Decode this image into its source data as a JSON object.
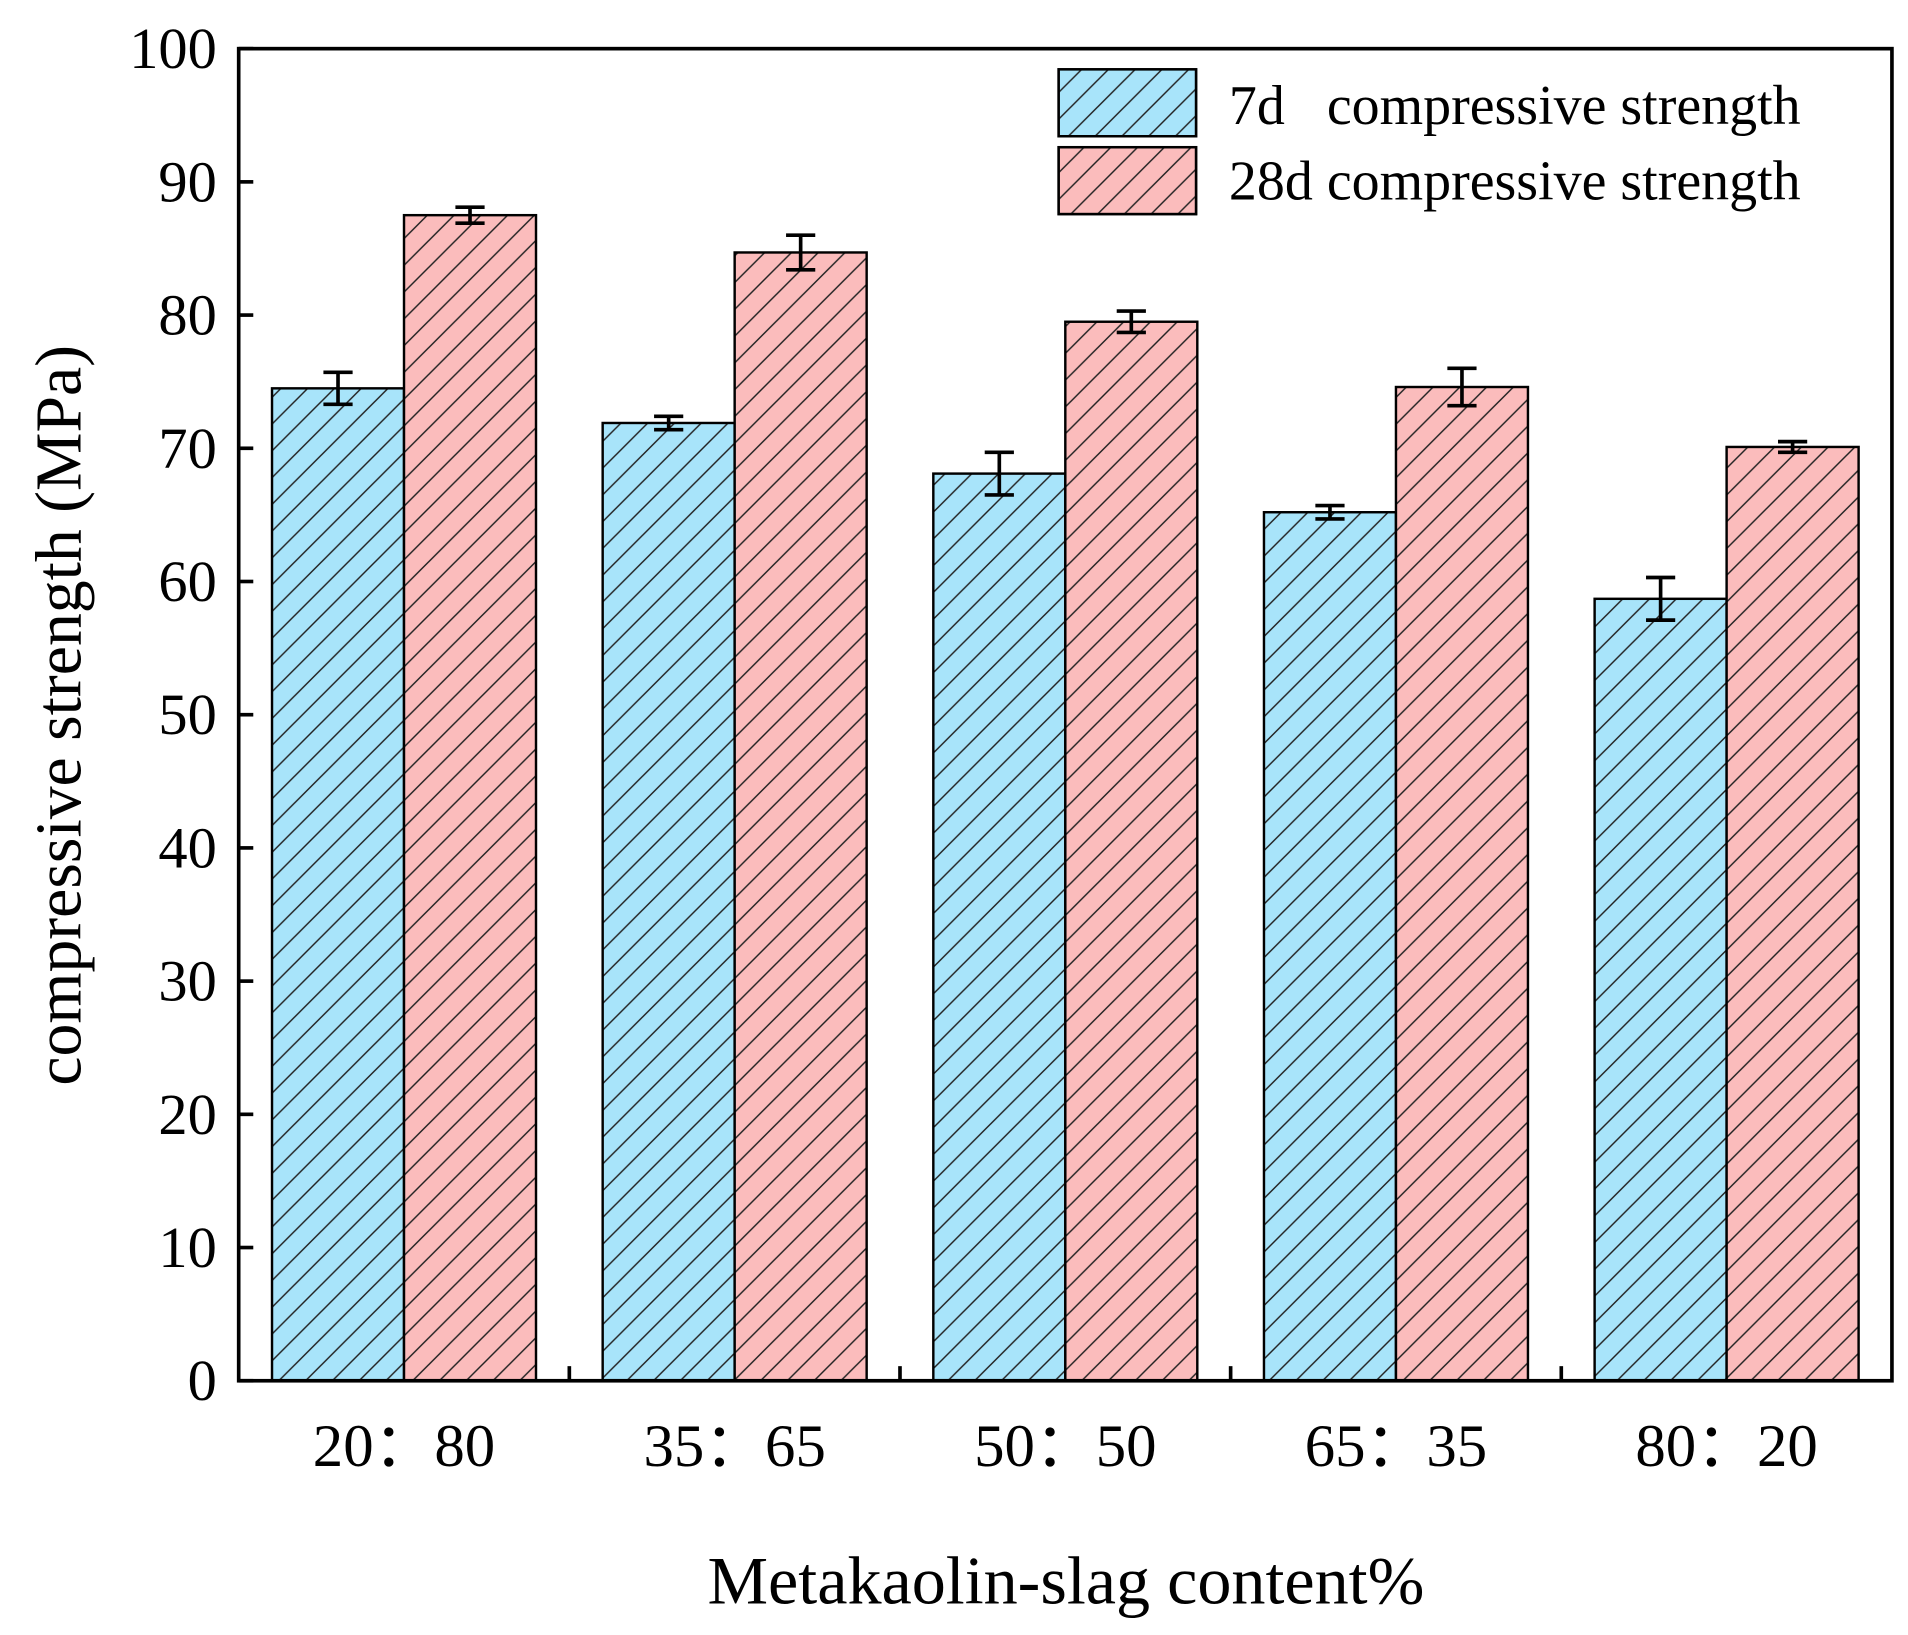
{
  "chart_data": {
    "type": "bar",
    "title": "",
    "xlabel": "Metakaolin-slag content%",
    "ylabel": "compressive strength (MPa)",
    "ylim": [
      0,
      100
    ],
    "yticks": [
      "0",
      "10",
      "20",
      "30",
      "40",
      "50",
      "60",
      "70",
      "80",
      "90",
      "100"
    ],
    "categories": [
      "20：80",
      "35：65",
      "50：50",
      "65：35",
      "80：20"
    ],
    "grid": false,
    "legend_position": "top-right",
    "series": [
      {
        "name": "7d   compressive strength",
        "values": [
          74.5,
          71.9,
          68.1,
          65.2,
          58.7
        ],
        "errors": [
          1.2,
          0.5,
          1.6,
          0.5,
          1.6
        ],
        "color": "#a8e4fa",
        "pattern": "diagonal-hatch"
      },
      {
        "name": "28d compressive strength",
        "values": [
          87.5,
          84.7,
          79.5,
          74.6,
          70.1
        ],
        "errors": [
          0.6,
          1.3,
          0.8,
          1.4,
          0.4
        ],
        "color": "#fbbcbc",
        "pattern": "diagonal-hatch"
      }
    ]
  }
}
